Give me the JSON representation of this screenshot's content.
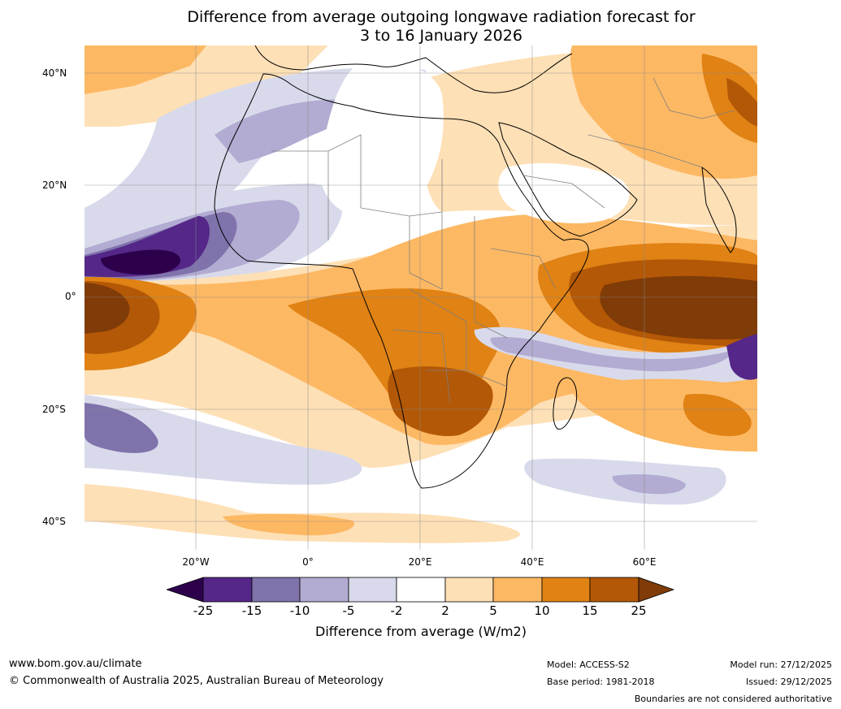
{
  "title": {
    "line1": "Difference from average outgoing longwave radiation forecast for",
    "line2": "3 to 16 January 2026"
  },
  "axes": {
    "lat_labels": [
      "40°N",
      "20°N",
      "0°",
      "20°S",
      "40°S"
    ],
    "lon_labels": [
      "20°W",
      "0°",
      "20°E",
      "40°E",
      "60°E"
    ]
  },
  "legend": {
    "title": "Difference from average (W/m2)",
    "ticks": [
      "-25",
      "-15",
      "-10",
      "-5",
      "-2",
      "2",
      "5",
      "10",
      "15",
      "25"
    ],
    "colors": [
      "#2d004b",
      "#542788",
      "#8073ac",
      "#b2abd2",
      "#d8daeb",
      "#ffffff",
      "#fee0b6",
      "#fdb863",
      "#e08214",
      "#b35806",
      "#7f3b08"
    ]
  },
  "footer": {
    "website": "www.bom.gov.au/climate",
    "copyright": "© Commonwealth of Australia 2025, Australian Bureau of Meteorology",
    "model": "Model: ACCESS-S2",
    "base_period": "Base period: 1981-2018",
    "model_run": "Model run: 27/12/2025",
    "issued": "Issued: 29/12/2025",
    "disclaimer": "Boundaries are not considered authoritative"
  }
}
